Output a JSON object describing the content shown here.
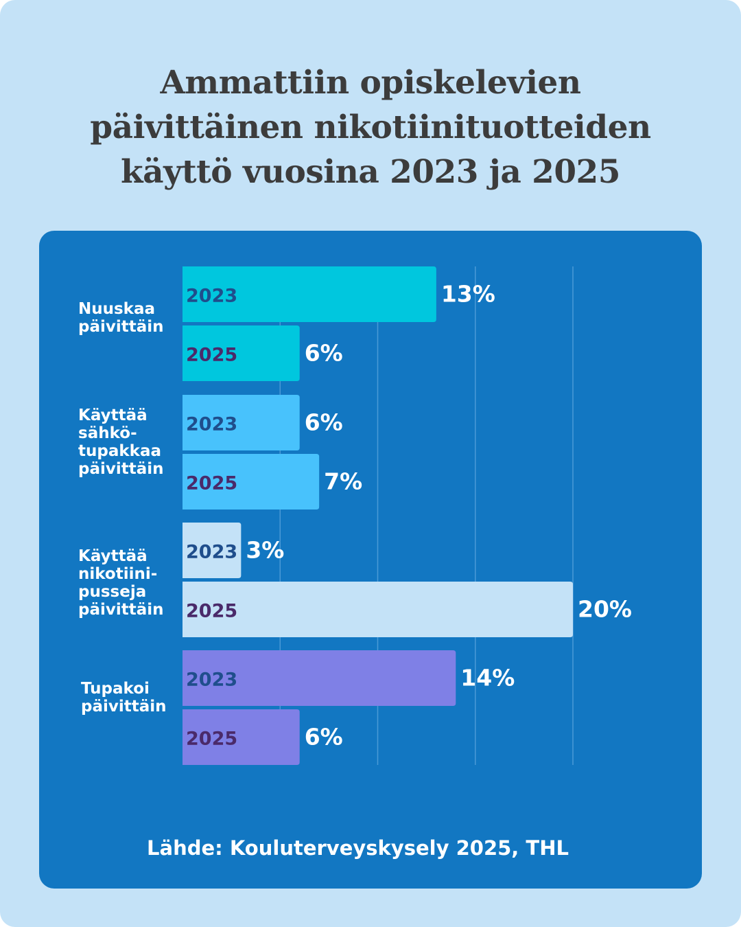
{
  "title_lines": [
    "Ammattiin opiskelevien",
    "päivittäinen nikotiinituotteiden",
    "käyttö vuosina 2023 ja 2025"
  ],
  "source": "Lähde: Kouluterveyskysely 2025, THL",
  "colors": {
    "background": "#c4e2f7",
    "panel": "#1277c2",
    "title": "#3c3c3c",
    "year_text_2023": "#1f4e8c",
    "year_text_2025": "#4a2a6a"
  },
  "chart_data": {
    "type": "bar",
    "orientation": "horizontal",
    "categories": [
      {
        "label_lines": [
          "Nuuskaa",
          "päivittäin"
        ],
        "color": "#00c7de",
        "bars": [
          {
            "year": "2023",
            "value": 13,
            "label": "13%"
          },
          {
            "year": "2025",
            "value": 6,
            "label": "6%"
          }
        ]
      },
      {
        "label_lines": [
          "Käyttää",
          "sähkö-",
          "tupakkaa",
          "päivittäin"
        ],
        "color": "#48c2fc",
        "bars": [
          {
            "year": "2023",
            "value": 6,
            "label": "6%"
          },
          {
            "year": "2025",
            "value": 7,
            "label": "7%"
          }
        ]
      },
      {
        "label_lines": [
          "Käyttää",
          "nikotiini-",
          "pusseja",
          "päivittäin"
        ],
        "color": "#c4e2f7",
        "bars": [
          {
            "year": "2023",
            "value": 3,
            "label": "3%"
          },
          {
            "year": "2025",
            "value": 20,
            "label": "20%"
          }
        ]
      },
      {
        "label_lines": [
          "Tupakoi",
          "päivittäin"
        ],
        "color": "#7f80e6",
        "bars": [
          {
            "year": "2023",
            "value": 14,
            "label": "14%"
          },
          {
            "year": "2025",
            "value": 6,
            "label": "6%"
          }
        ]
      }
    ],
    "xlim": [
      0,
      20
    ],
    "grid": true,
    "gridlines": [
      5,
      10,
      15,
      20
    ],
    "unit": "%"
  }
}
